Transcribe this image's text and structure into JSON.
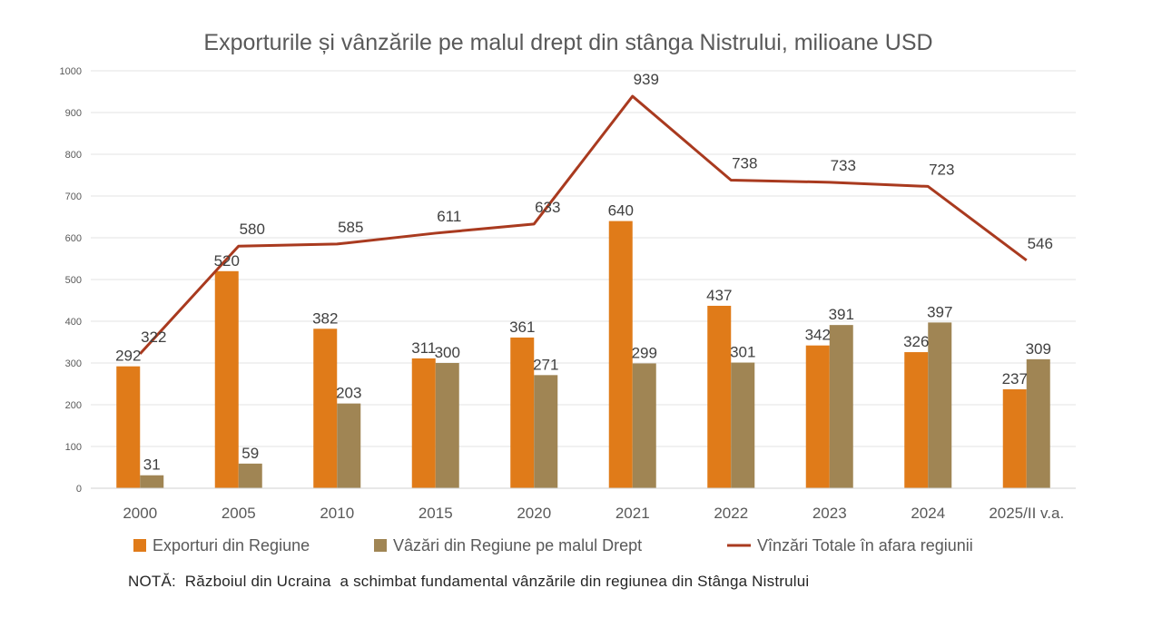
{
  "chart_data": {
    "type": "bar",
    "title": "Exporturile și vânzările pe malul drept din stânga Nistrului, milioane USD",
    "categories": [
      "2000",
      "2005",
      "2010",
      "2015",
      "2020",
      "2021",
      "2022",
      "2023",
      "2024",
      "2025/II v.a."
    ],
    "ylim": [
      0,
      1000
    ],
    "yticks": [
      "0",
      "100",
      "200",
      "300",
      "400",
      "500",
      "600",
      "700",
      "800",
      "900",
      "1000"
    ],
    "grid": true,
    "legend_position": "bottom",
    "series": [
      {
        "name": "Exporturi din Regiune",
        "kind": "bar",
        "color": "#E07B19",
        "values": [
          292,
          520,
          382,
          311,
          361,
          640,
          437,
          342,
          326,
          237
        ]
      },
      {
        "name": "Vâzări din Regiune pe malul Drept",
        "kind": "bar",
        "color": "#A08554",
        "values": [
          31,
          59,
          203,
          300,
          271,
          299,
          301,
          391,
          397,
          309
        ]
      },
      {
        "name": "Vînzări Totale în afara regiunii",
        "kind": "line",
        "color": "#A93A1F",
        "values": [
          322,
          580,
          585,
          611,
          633,
          939,
          738,
          733,
          723,
          546
        ]
      }
    ],
    "note": "NOTĂ:  Războiul din Ucraina  a schimbat fundamental vânzările din regiunea din Stânga Nistrului"
  }
}
